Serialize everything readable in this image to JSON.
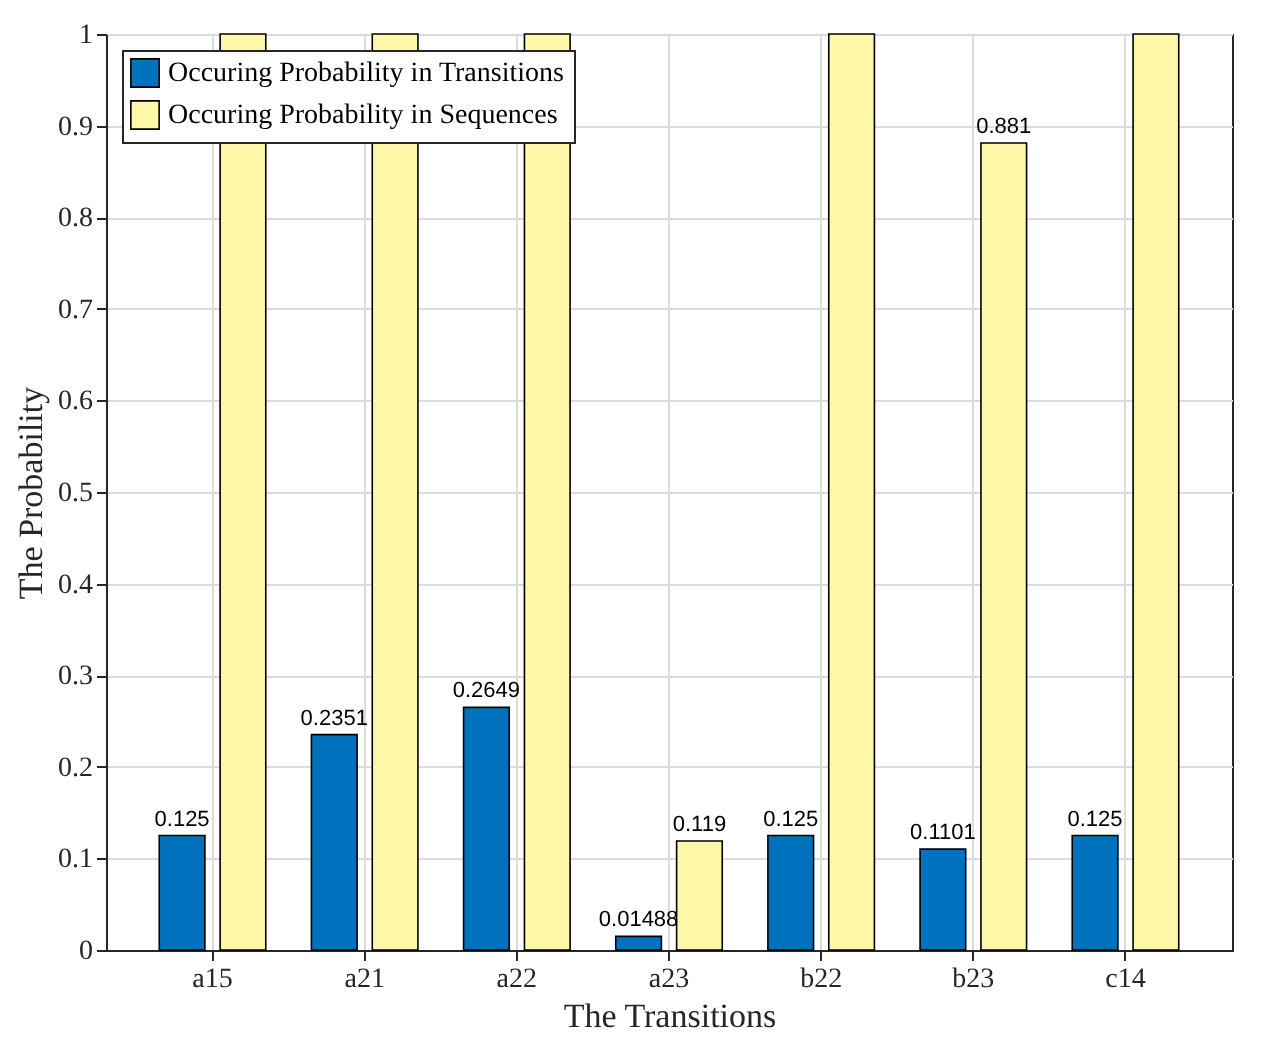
{
  "chart_data": {
    "type": "bar",
    "xlabel": "The Transitions",
    "ylabel": "The Probability",
    "categories": [
      "a15",
      "a21",
      "a22",
      "a23",
      "b22",
      "b23",
      "c14"
    ],
    "series": [
      {
        "name": "Occuring Probability in Transitions",
        "color": "#0072bd",
        "values": [
          0.125,
          0.2351,
          0.2649,
          0.01488,
          0.125,
          0.1101,
          0.125
        ],
        "value_labels": [
          "0.125",
          "0.2351",
          "0.2649",
          "0.01488",
          "0.125",
          "0.1101",
          "0.125"
        ]
      },
      {
        "name": "Occuring Probability in Sequences",
        "color": "#fff7a8",
        "values": [
          1,
          1,
          1,
          0.119,
          1,
          0.881,
          1
        ],
        "value_labels": [
          null,
          null,
          null,
          "0.119",
          null,
          "0.881",
          null
        ]
      }
    ],
    "ylim": [
      0,
      1
    ],
    "yticks": [
      0,
      0.1,
      0.2,
      0.3,
      0.4,
      0.5,
      0.6,
      0.7,
      0.8,
      0.9,
      1
    ],
    "grid": true,
    "legend": "top left"
  }
}
